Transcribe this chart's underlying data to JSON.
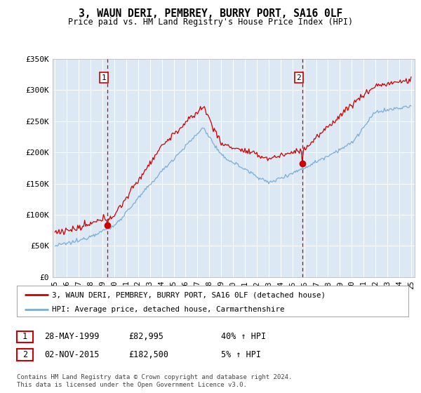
{
  "title": "3, WAUN DERI, PEMBREY, BURRY PORT, SA16 0LF",
  "subtitle": "Price paid vs. HM Land Registry's House Price Index (HPI)",
  "legend_line1": "3, WAUN DERI, PEMBREY, BURRY PORT, SA16 0LF (detached house)",
  "legend_line2": "HPI: Average price, detached house, Carmarthenshire",
  "sale1_date": "28-MAY-1999",
  "sale1_price": "£82,995",
  "sale1_hpi": "40% ↑ HPI",
  "sale2_date": "02-NOV-2015",
  "sale2_price": "£182,500",
  "sale2_hpi": "5% ↑ HPI",
  "footer": "Contains HM Land Registry data © Crown copyright and database right 2024.\nThis data is licensed under the Open Government Licence v3.0.",
  "background_color": "#dce9f5",
  "fig_bg_color": "#ffffff",
  "red_line_color": "#cc0000",
  "blue_line_color": "#7aadd4",
  "vline_color": "#cc0000",
  "sale1_x": 1999.42,
  "sale2_x": 2015.84,
  "sale1_y": 82995,
  "sale2_y": 182500,
  "ylim": [
    0,
    350000
  ],
  "yticks": [
    0,
    50000,
    100000,
    150000,
    200000,
    250000,
    300000,
    350000
  ],
  "ylabel_strs": [
    "£0",
    "£50K",
    "£100K",
    "£150K",
    "£200K",
    "£250K",
    "£300K",
    "£350K"
  ],
  "xlabel_years": [
    1995,
    1996,
    1997,
    1998,
    1999,
    2000,
    2001,
    2002,
    2003,
    2004,
    2005,
    2006,
    2007,
    2008,
    2009,
    2010,
    2011,
    2012,
    2013,
    2014,
    2015,
    2016,
    2017,
    2018,
    2019,
    2020,
    2021,
    2022,
    2023,
    2024,
    2025
  ],
  "xlim": [
    1994.8,
    2025.3
  ]
}
